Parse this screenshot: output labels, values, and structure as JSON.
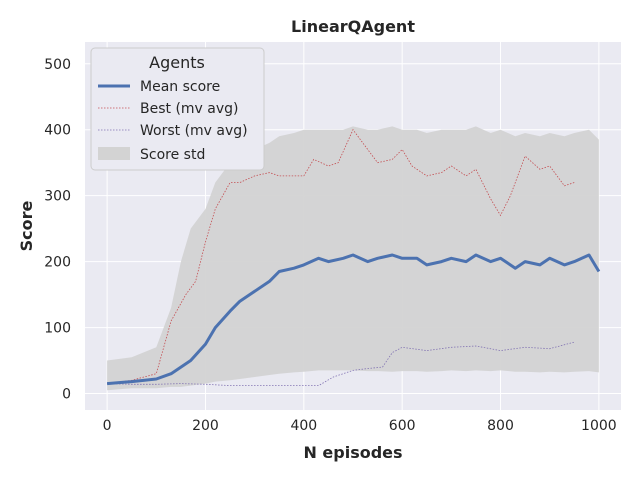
{
  "chart_data": {
    "type": "line",
    "title": "LinearQAgent",
    "xlabel": "N episodes",
    "ylabel": "Score",
    "xlim": [
      -45,
      1045
    ],
    "ylim": [
      -25,
      533
    ],
    "grid": true,
    "x_ticks": [
      0,
      200,
      400,
      600,
      800,
      1000
    ],
    "y_ticks": [
      0,
      100,
      200,
      300,
      400,
      500
    ],
    "legend": {
      "title": "Agents",
      "placement": "top-left",
      "entries": [
        "Mean score",
        "Best (mv avg)",
        "Worst (mv avg)",
        "Score std"
      ]
    },
    "colors": {
      "mean": "#4c72b0",
      "best": "#c44e52",
      "worst": "#8172b2",
      "std": "#d3d3d3",
      "plot_bg": "#eaeaf2",
      "grid": "#ffffff"
    },
    "series": [
      {
        "name": "Mean score",
        "x": [
          0,
          50,
          100,
          130,
          150,
          170,
          200,
          220,
          250,
          270,
          300,
          330,
          350,
          380,
          400,
          430,
          450,
          480,
          500,
          530,
          550,
          580,
          600,
          630,
          650,
          680,
          700,
          730,
          750,
          780,
          800,
          830,
          850,
          880,
          900,
          930,
          950,
          980,
          1000
        ],
        "y": [
          15,
          18,
          22,
          30,
          40,
          50,
          75,
          100,
          125,
          140,
          155,
          170,
          185,
          190,
          195,
          205,
          200,
          205,
          210,
          200,
          205,
          210,
          205,
          205,
          195,
          200,
          205,
          200,
          210,
          200,
          205,
          190,
          200,
          195,
          205,
          195,
          200,
          210,
          185
        ],
        "band_low": [
          5,
          8,
          8,
          10,
          10,
          12,
          15,
          18,
          20,
          22,
          25,
          28,
          30,
          32,
          33,
          35,
          35,
          35,
          35,
          34,
          34,
          33,
          34,
          34,
          33,
          34,
          35,
          34,
          35,
          34,
          35,
          33,
          33,
          32,
          33,
          32,
          33,
          34,
          32
        ],
        "band_high": [
          50,
          55,
          70,
          130,
          200,
          250,
          280,
          320,
          350,
          360,
          370,
          380,
          390,
          395,
          400,
          400,
          400,
          400,
          405,
          400,
          400,
          405,
          400,
          400,
          395,
          400,
          400,
          400,
          405,
          395,
          400,
          390,
          395,
          390,
          395,
          390,
          395,
          400,
          385
        ]
      },
      {
        "name": "Best (mv avg)",
        "x": [
          0,
          50,
          100,
          130,
          160,
          180,
          200,
          220,
          250,
          270,
          300,
          330,
          350,
          380,
          400,
          420,
          450,
          470,
          500,
          520,
          550,
          580,
          600,
          620,
          650,
          680,
          700,
          730,
          750,
          780,
          800,
          820,
          850,
          880,
          900,
          930,
          950
        ],
        "y": [
          15,
          20,
          30,
          110,
          150,
          170,
          230,
          280,
          320,
          320,
          330,
          335,
          330,
          330,
          330,
          355,
          345,
          350,
          400,
          380,
          350,
          355,
          370,
          345,
          330,
          335,
          345,
          330,
          340,
          295,
          270,
          300,
          360,
          340,
          345,
          315,
          320
        ]
      },
      {
        "name": "Worst (mv avg)",
        "x": [
          0,
          50,
          100,
          150,
          200,
          250,
          300,
          350,
          400,
          430,
          460,
          500,
          530,
          560,
          580,
          600,
          650,
          700,
          750,
          800,
          850,
          900,
          950
        ],
        "y": [
          15,
          14,
          14,
          15,
          14,
          12,
          12,
          12,
          12,
          12,
          25,
          35,
          38,
          40,
          62,
          70,
          65,
          70,
          72,
          65,
          70,
          68,
          78
        ]
      }
    ]
  }
}
